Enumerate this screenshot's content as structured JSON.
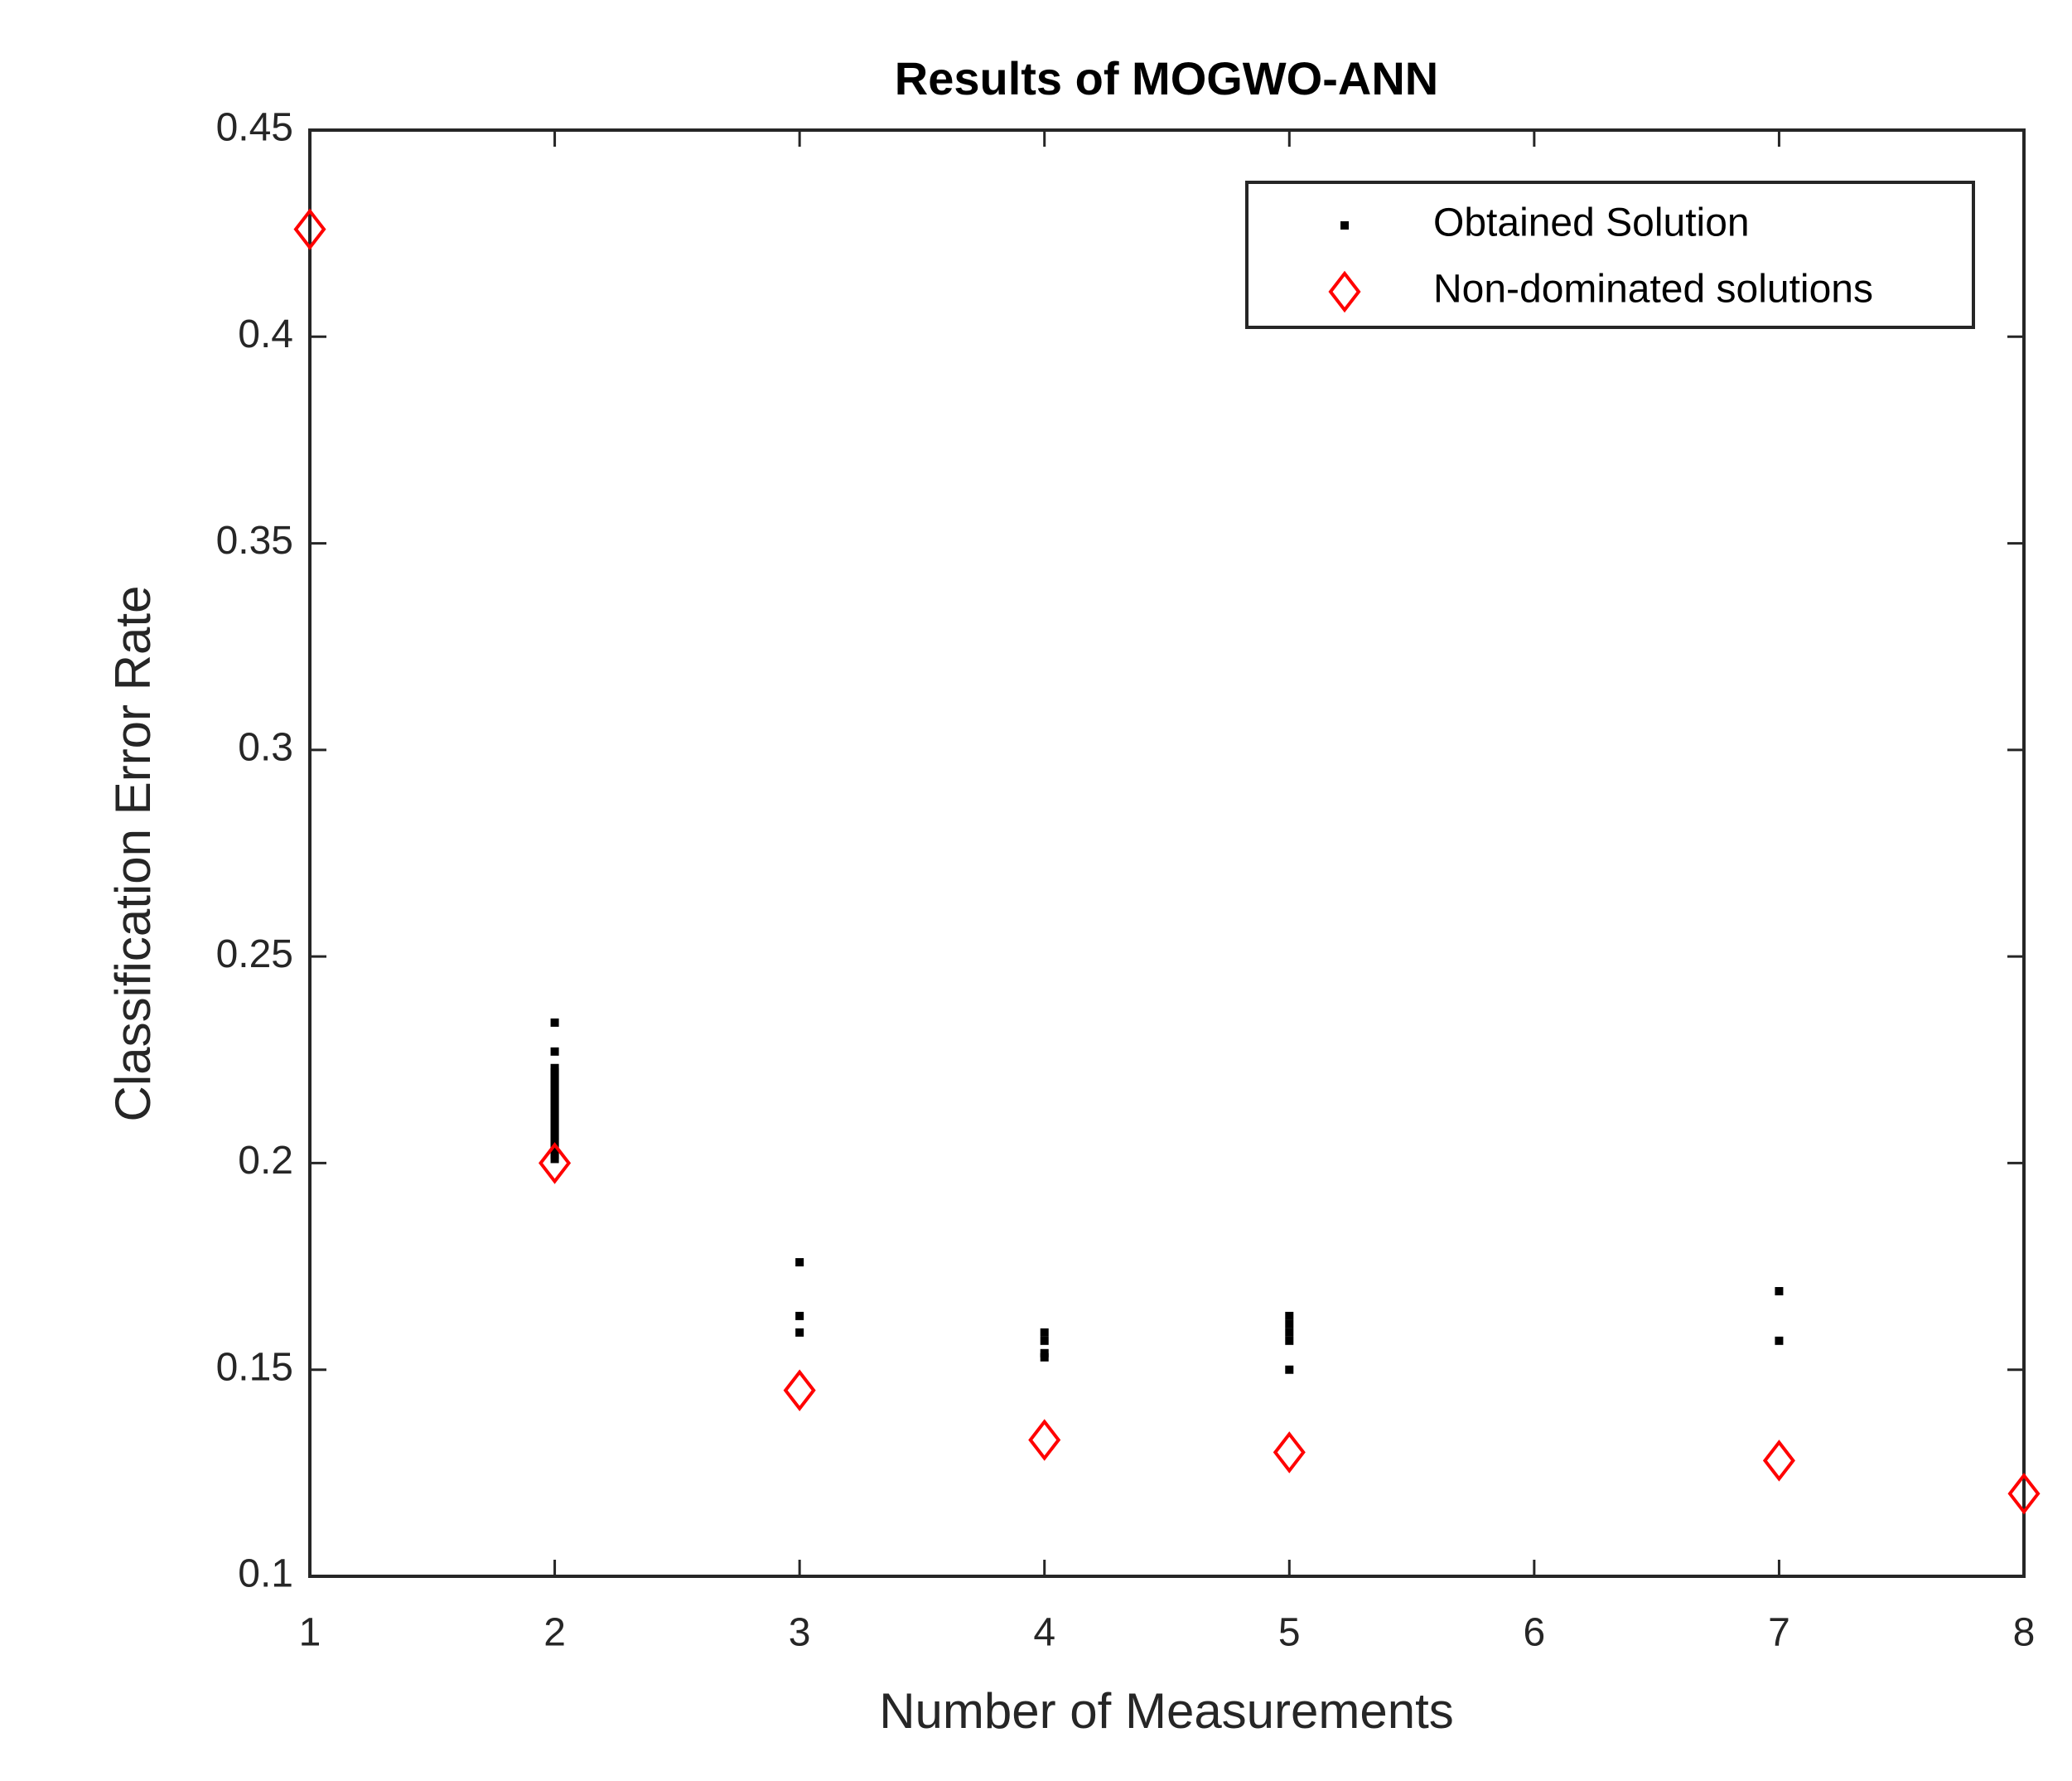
{
  "chart_data": {
    "type": "scatter",
    "title": "Results of MOGWO-ANN",
    "x_label": "Number of Measurements",
    "y_label": "Classification Error Rate",
    "xlim": [
      1,
      8
    ],
    "ylim": [
      0.1,
      0.45
    ],
    "xticks": [
      1,
      2,
      3,
      4,
      5,
      6,
      7,
      8
    ],
    "yticks": [
      0.1,
      0.15,
      0.2,
      0.25,
      0.3,
      0.35,
      0.4,
      0.45
    ],
    "grid": false,
    "legend": "northeast",
    "series": [
      {
        "name": "Obtained Solution",
        "color": "#000000",
        "marker": "point",
        "x": [
          2,
          2,
          2,
          2,
          2,
          2,
          2,
          2,
          2,
          2,
          2,
          2,
          2,
          2,
          2,
          2,
          2,
          2,
          2,
          2,
          2,
          2,
          2,
          2,
          2,
          3,
          3,
          3,
          4,
          4,
          4,
          4,
          5,
          5,
          5,
          5,
          5,
          7,
          7
        ],
        "values": [
          0.234,
          0.227,
          0.223,
          0.222,
          0.221,
          0.22,
          0.219,
          0.218,
          0.217,
          0.216,
          0.215,
          0.214,
          0.213,
          0.212,
          0.211,
          0.21,
          0.209,
          0.208,
          0.207,
          0.206,
          0.205,
          0.204,
          0.203,
          0.202,
          0.201,
          0.176,
          0.163,
          0.159,
          0.159,
          0.157,
          0.154,
          0.153,
          0.163,
          0.161,
          0.159,
          0.157,
          0.15,
          0.169,
          0.157
        ]
      },
      {
        "name": "Non-dominated solutions",
        "color": "#ff0000",
        "marker": "diamond",
        "x": [
          1,
          2,
          3,
          4,
          5,
          7,
          8
        ],
        "values": [
          0.426,
          0.2,
          0.145,
          0.133,
          0.13,
          0.128,
          0.12
        ]
      }
    ]
  }
}
